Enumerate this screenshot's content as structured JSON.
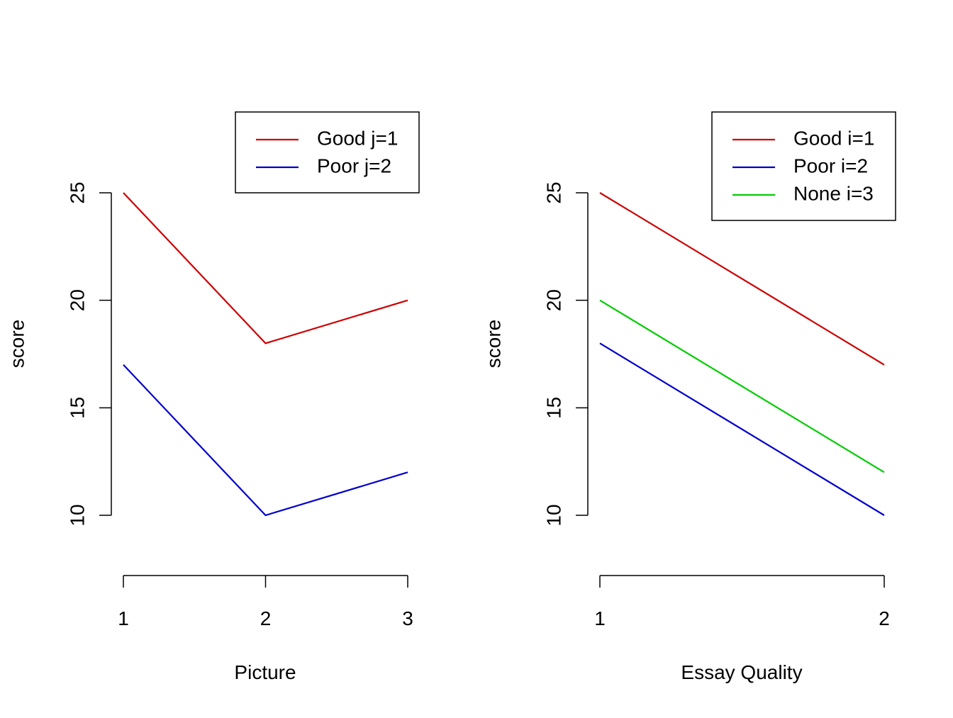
{
  "chart_data": [
    {
      "type": "line",
      "title": "",
      "xlabel": "Picture",
      "ylabel": "score",
      "x": [
        1,
        2,
        3
      ],
      "x_ticks": [
        "1",
        "2",
        "3"
      ],
      "y_ticks": [
        "10",
        "15",
        "20",
        "25"
      ],
      "y_tick_values": [
        10,
        15,
        20,
        25
      ],
      "xlim": [
        1,
        3
      ],
      "ylim": [
        10,
        25
      ],
      "grid": false,
      "legend_position": "top-right",
      "series": [
        {
          "name": "Good j=1",
          "color": "#CD0000",
          "values": [
            25,
            18,
            20
          ]
        },
        {
          "name": "Poor j=2",
          "color": "#0000CD",
          "values": [
            17,
            10,
            12
          ]
        }
      ]
    },
    {
      "type": "line",
      "title": "",
      "xlabel": "Essay Quality",
      "ylabel": "score",
      "x": [
        1,
        2
      ],
      "x_ticks": [
        "1",
        "2"
      ],
      "y_ticks": [
        "10",
        "15",
        "20",
        "25"
      ],
      "y_tick_values": [
        10,
        15,
        20,
        25
      ],
      "xlim": [
        1,
        2
      ],
      "ylim": [
        10,
        25
      ],
      "grid": false,
      "legend_position": "top-right",
      "series": [
        {
          "name": "Good i=1",
          "color": "#CD0000",
          "values": [
            25,
            17
          ]
        },
        {
          "name": "Poor i=2",
          "color": "#0000CD",
          "values": [
            18,
            10
          ]
        },
        {
          "name": "None i=3",
          "color": "#00CD00",
          "values": [
            20,
            12
          ]
        }
      ]
    }
  ]
}
